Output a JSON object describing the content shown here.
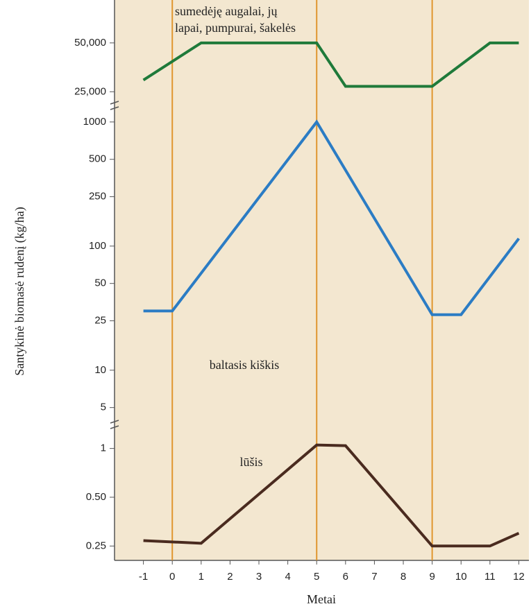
{
  "chart_data": [
    {
      "type": "line",
      "log_y": true,
      "annotation": [
        "sumedėję augalai, jų",
        "lapai, pumpurai, šakelės"
      ],
      "x": [
        -1,
        1,
        5,
        6,
        9,
        11,
        12
      ],
      "series": [
        {
          "color": "#1f7a3a",
          "values": [
            29500,
            50000,
            50000,
            27000,
            27000,
            50000,
            50000
          ]
        }
      ],
      "ylim": [
        21000,
        62000
      ],
      "yticks": [
        {
          "value": 50000,
          "label": "50,000"
        },
        {
          "value": 25000,
          "label": "25,000"
        }
      ]
    },
    {
      "type": "line",
      "log_y": true,
      "annotation": [
        "baltasis kiškis"
      ],
      "ylabel": "Santykinė biomasė rudenį (kg/ha)",
      "x": [
        -1,
        0,
        5,
        9,
        10,
        12
      ],
      "series": [
        {
          "color": "#2b7cc4",
          "values": [
            30,
            30,
            1000,
            28,
            28,
            115
          ]
        }
      ],
      "ylim": [
        4,
        1150
      ],
      "yticks": [
        1000,
        500,
        250,
        100,
        50,
        25,
        10,
        5
      ]
    },
    {
      "type": "line",
      "log_y": true,
      "annotation": [
        "lūšis"
      ],
      "xlabel": "Metai",
      "x": [
        -1,
        1,
        5,
        6,
        9,
        11,
        12
      ],
      "series": [
        {
          "color": "#4a2b1f",
          "values": [
            0.27,
            0.26,
            1.05,
            1.04,
            0.25,
            0.25,
            0.3
          ]
        }
      ],
      "ylim": [
        0.21,
        1.3
      ],
      "yticks": [
        1,
        {
          "value": 0.5,
          "label": "0.50"
        },
        0.25
      ],
      "xlim": [
        -2,
        12.35
      ],
      "xticks": [
        -1,
        0,
        1,
        2,
        3,
        4,
        5,
        6,
        7,
        8,
        9,
        10,
        11,
        12
      ],
      "vlines": [
        0,
        5,
        9
      ]
    }
  ]
}
